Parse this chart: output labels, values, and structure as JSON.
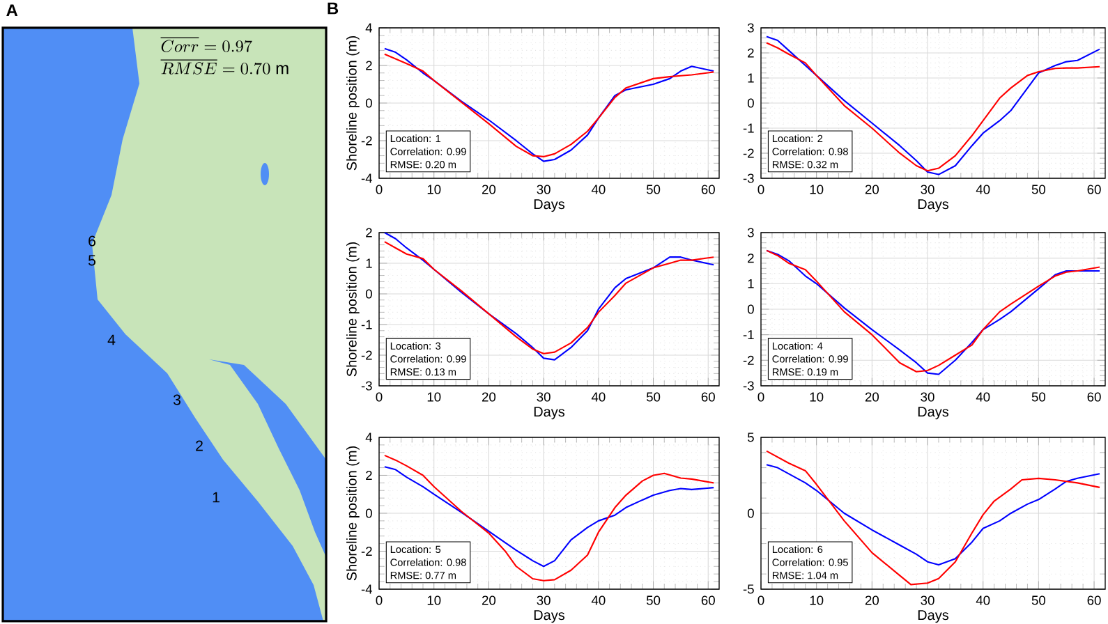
{
  "chart_data": [
    {
      "type": "other",
      "title": "A",
      "annotations": [
        "\\overline{Corr} = 0.97",
        "\\overline{RMSE} = 0.70\\ \\mathrm{m}",
        "6",
        "5",
        "4",
        "3",
        "2",
        "1"
      ]
    },
    {
      "type": "line",
      "title": "B",
      "xlabel": "Days",
      "ylabel": "Shoreline position (m)",
      "xlim": [
        0,
        62
      ],
      "ylim": [
        -4,
        4
      ],
      "xticks": [
        0,
        10,
        20,
        30,
        40,
        50,
        60
      ],
      "yticks": [
        -4,
        -2,
        0,
        2,
        4
      ],
      "grid": true,
      "annotations": [
        "Location: 1",
        "Correlation: 0.99",
        "RMSE: 0.20 m"
      ],
      "series": [
        {
          "color": "#0000ff",
          "x": [
            1,
            3,
            5,
            8,
            10,
            15,
            20,
            25,
            28,
            30,
            32,
            35,
            38,
            40,
            43,
            45,
            50,
            53,
            55,
            57,
            61
          ],
          "values": [
            2.9,
            2.7,
            2.3,
            1.6,
            1.2,
            0.1,
            -0.9,
            -2.0,
            -2.7,
            -3.1,
            -3.0,
            -2.5,
            -1.7,
            -0.8,
            0.4,
            0.7,
            1.0,
            1.3,
            1.7,
            1.95,
            1.7
          ]
        },
        {
          "color": "#ff0000",
          "x": [
            1,
            3,
            5,
            8,
            10,
            15,
            20,
            25,
            28,
            30,
            32,
            35,
            38,
            40,
            43,
            45,
            50,
            53,
            55,
            57,
            61
          ],
          "values": [
            2.6,
            2.35,
            2.1,
            1.7,
            1.2,
            0.05,
            -1.1,
            -2.3,
            -2.8,
            -2.85,
            -2.7,
            -2.2,
            -1.5,
            -0.8,
            0.3,
            0.8,
            1.3,
            1.4,
            1.45,
            1.5,
            1.65
          ]
        }
      ]
    },
    {
      "type": "line",
      "xlabel": "Days",
      "xlim": [
        0,
        62
      ],
      "ylim": [
        -3,
        3
      ],
      "xticks": [
        0,
        10,
        20,
        30,
        40,
        50,
        60
      ],
      "yticks": [
        -3,
        -2,
        -1,
        0,
        1,
        2,
        3
      ],
      "grid": true,
      "annotations": [
        "Location: 2",
        "Correlation: 0.98",
        "RMSE: 0.32 m"
      ],
      "series": [
        {
          "color": "#0000ff",
          "x": [
            1,
            3,
            5,
            8,
            10,
            15,
            20,
            25,
            28,
            30,
            32,
            35,
            38,
            40,
            43,
            45,
            48,
            50,
            53,
            55,
            57,
            61
          ],
          "values": [
            2.65,
            2.5,
            2.1,
            1.5,
            1.1,
            0.1,
            -0.8,
            -1.7,
            -2.3,
            -2.75,
            -2.85,
            -2.5,
            -1.7,
            -1.2,
            -0.7,
            -0.3,
            0.6,
            1.2,
            1.5,
            1.65,
            1.7,
            2.15
          ]
        },
        {
          "color": "#ff0000",
          "x": [
            1,
            3,
            5,
            8,
            10,
            15,
            20,
            25,
            28,
            30,
            32,
            35,
            38,
            40,
            43,
            45,
            48,
            50,
            53,
            55,
            57,
            61
          ],
          "values": [
            2.4,
            2.2,
            1.95,
            1.6,
            1.1,
            -0.1,
            -1.0,
            -2.0,
            -2.5,
            -2.7,
            -2.6,
            -2.1,
            -1.3,
            -0.7,
            0.2,
            0.6,
            1.1,
            1.25,
            1.38,
            1.4,
            1.4,
            1.45
          ]
        }
      ]
    },
    {
      "type": "line",
      "xlabel": "Days",
      "ylabel": "Shoreline position (m)",
      "xlim": [
        0,
        62
      ],
      "ylim": [
        -3,
        2
      ],
      "xticks": [
        0,
        10,
        20,
        30,
        40,
        50,
        60
      ],
      "yticks": [
        -3,
        -2,
        -1,
        0,
        1,
        2
      ],
      "grid": true,
      "annotations": [
        "Location: 3",
        "Correlation: 0.99",
        "RMSE: 0.13 m"
      ],
      "series": [
        {
          "color": "#0000ff",
          "x": [
            1,
            3,
            5,
            8,
            10,
            15,
            20,
            25,
            28,
            30,
            32,
            35,
            38,
            40,
            43,
            45,
            50,
            53,
            55,
            57,
            61
          ],
          "values": [
            2.0,
            1.8,
            1.5,
            1.1,
            0.8,
            0.05,
            -0.65,
            -1.3,
            -1.75,
            -2.1,
            -2.15,
            -1.75,
            -1.2,
            -0.5,
            0.2,
            0.5,
            0.85,
            1.2,
            1.2,
            1.1,
            0.95
          ]
        },
        {
          "color": "#ff0000",
          "x": [
            1,
            3,
            5,
            8,
            10,
            15,
            20,
            25,
            28,
            30,
            32,
            35,
            38,
            40,
            43,
            45,
            50,
            53,
            55,
            57,
            61
          ],
          "values": [
            1.7,
            1.5,
            1.3,
            1.15,
            0.8,
            0.1,
            -0.65,
            -1.4,
            -1.8,
            -1.95,
            -1.9,
            -1.6,
            -1.1,
            -0.6,
            -0.05,
            0.35,
            0.85,
            1.0,
            1.1,
            1.1,
            1.2
          ]
        }
      ]
    },
    {
      "type": "line",
      "xlabel": "Days",
      "xlim": [
        0,
        62
      ],
      "ylim": [
        -3,
        3
      ],
      "xticks": [
        0,
        10,
        20,
        30,
        40,
        50,
        60
      ],
      "yticks": [
        -3,
        -2,
        -1,
        0,
        1,
        2,
        3
      ],
      "grid": true,
      "annotations": [
        "Location: 4",
        "Correlation: 0.99",
        "RMSE: 0.19 m"
      ],
      "series": [
        {
          "color": "#0000ff",
          "x": [
            1,
            3,
            5,
            8,
            10,
            15,
            20,
            25,
            28,
            30,
            32,
            35,
            38,
            40,
            43,
            45,
            50,
            53,
            55,
            57,
            61
          ],
          "values": [
            2.3,
            2.15,
            1.9,
            1.3,
            1.0,
            0.05,
            -0.8,
            -1.6,
            -2.1,
            -2.5,
            -2.55,
            -2.0,
            -1.3,
            -0.8,
            -0.4,
            -0.1,
            0.8,
            1.35,
            1.5,
            1.5,
            1.5
          ]
        },
        {
          "color": "#ff0000",
          "x": [
            1,
            3,
            5,
            8,
            10,
            15,
            20,
            25,
            28,
            30,
            32,
            35,
            38,
            40,
            43,
            45,
            50,
            53,
            55,
            57,
            61
          ],
          "values": [
            2.3,
            2.1,
            1.8,
            1.55,
            1.1,
            -0.1,
            -1.0,
            -2.1,
            -2.45,
            -2.4,
            -2.2,
            -1.8,
            -1.4,
            -0.8,
            -0.1,
            0.2,
            0.9,
            1.3,
            1.45,
            1.5,
            1.65
          ]
        }
      ]
    },
    {
      "type": "line",
      "xlabel": "Days",
      "ylabel": "Shoreline position (m)",
      "xlim": [
        0,
        62
      ],
      "ylim": [
        -4,
        4
      ],
      "xticks": [
        0,
        10,
        20,
        30,
        40,
        50,
        60
      ],
      "yticks": [
        -4,
        -2,
        0,
        2,
        4
      ],
      "grid": true,
      "annotations": [
        "Location: 5",
        "Correlation: 0.98",
        "RMSE: 0.77 m"
      ],
      "series": [
        {
          "color": "#0000ff",
          "x": [
            1,
            3,
            5,
            8,
            10,
            15,
            20,
            25,
            28,
            30,
            32,
            35,
            38,
            40,
            43,
            45,
            48,
            50,
            53,
            55,
            57,
            61
          ],
          "values": [
            2.45,
            2.3,
            1.9,
            1.4,
            1.0,
            0.05,
            -0.95,
            -1.95,
            -2.5,
            -2.8,
            -2.5,
            -1.4,
            -0.75,
            -0.4,
            -0.1,
            0.3,
            0.7,
            0.95,
            1.2,
            1.3,
            1.25,
            1.35
          ]
        },
        {
          "color": "#ff0000",
          "x": [
            1,
            3,
            5,
            8,
            10,
            15,
            20,
            23,
            25,
            28,
            30,
            32,
            35,
            38,
            40,
            43,
            45,
            48,
            50,
            52,
            55,
            57,
            61
          ],
          "values": [
            3.05,
            2.8,
            2.5,
            2.0,
            1.4,
            0.1,
            -1.05,
            -2.0,
            -2.8,
            -3.45,
            -3.55,
            -3.5,
            -3.0,
            -2.2,
            -1.0,
            0.3,
            0.95,
            1.7,
            2.0,
            2.1,
            1.85,
            1.8,
            1.6
          ]
        }
      ]
    },
    {
      "type": "line",
      "xlabel": "Days",
      "xlim": [
        0,
        62
      ],
      "ylim": [
        -5,
        5
      ],
      "xticks": [
        0,
        10,
        20,
        30,
        40,
        50,
        60
      ],
      "yticks": [
        -5,
        0,
        5
      ],
      "grid": true,
      "annotations": [
        "Location: 6",
        "Correlation: 0.95",
        "RMSE: 1.04 m"
      ],
      "series": [
        {
          "color": "#0000ff",
          "x": [
            1,
            3,
            5,
            8,
            10,
            15,
            20,
            25,
            28,
            30,
            32,
            35,
            38,
            40,
            43,
            45,
            48,
            50,
            53,
            55,
            57,
            61
          ],
          "values": [
            3.2,
            3.0,
            2.6,
            2.0,
            1.5,
            0.0,
            -1.1,
            -2.1,
            -2.7,
            -3.2,
            -3.4,
            -3.0,
            -1.9,
            -1.0,
            -0.5,
            0.0,
            0.6,
            0.9,
            1.6,
            2.1,
            2.3,
            2.6
          ]
        },
        {
          "color": "#ff0000",
          "x": [
            1,
            3,
            5,
            8,
            10,
            15,
            20,
            25,
            27,
            30,
            32,
            35,
            38,
            40,
            42,
            45,
            47,
            50,
            53,
            55,
            57,
            61
          ],
          "values": [
            4.1,
            3.7,
            3.3,
            2.8,
            1.9,
            -0.5,
            -2.6,
            -4.1,
            -4.7,
            -4.6,
            -4.3,
            -3.2,
            -1.3,
            -0.1,
            0.8,
            1.6,
            2.2,
            2.3,
            2.2,
            2.1,
            2.0,
            1.7
          ]
        }
      ]
    }
  ]
}
